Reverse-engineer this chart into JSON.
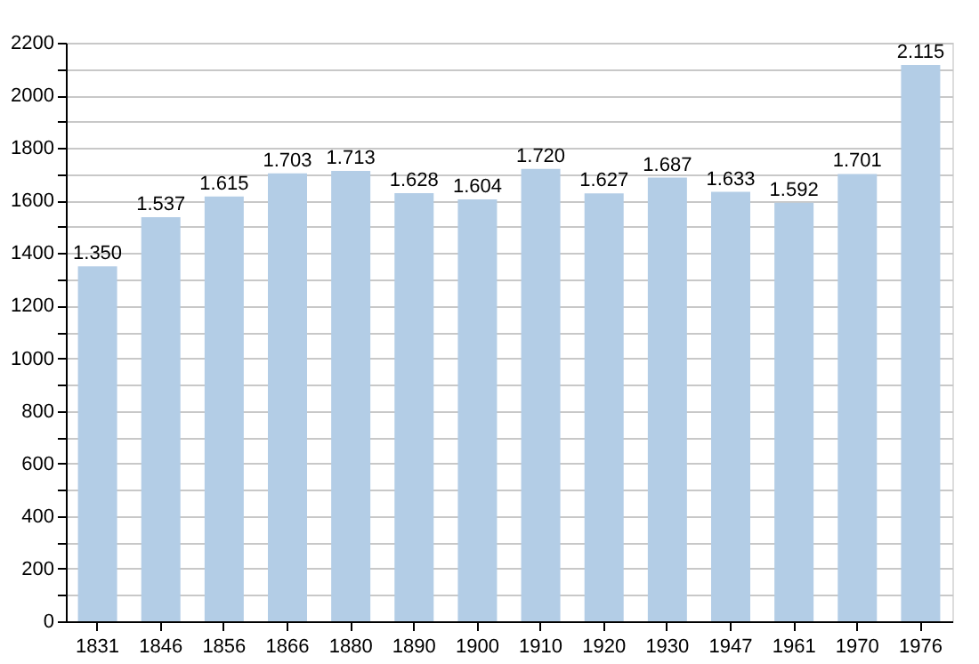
{
  "chart_data": {
    "type": "bar",
    "categories": [
      "1831",
      "1846",
      "1856",
      "1866",
      "1880",
      "1890",
      "1900",
      "1910",
      "1920",
      "1930",
      "1947",
      "1961",
      "1970",
      "1976"
    ],
    "values": [
      1350,
      1537,
      1615,
      1703,
      1713,
      1628,
      1604,
      1720,
      1627,
      1687,
      1633,
      1592,
      1701,
      2115
    ],
    "color": "#b3cde6",
    "value_labels": [
      "1.350",
      "1.537",
      "1.615",
      "1.703",
      "1.713",
      "1.628",
      "1.604",
      "1.720",
      "1.627",
      "1.687",
      "1.633",
      "1.592",
      "1.701",
      "2.115"
    ],
    "ylim": [
      0,
      2200
    ],
    "yticks": [
      0,
      {
        "value": 100,
        "label": null
      },
      200,
      {
        "value": 300,
        "label": null
      },
      400,
      {
        "value": 500,
        "label": null
      },
      600,
      {
        "value": 700,
        "label": null
      },
      800,
      {
        "value": 900,
        "label": null
      },
      1000,
      {
        "value": 1100,
        "label": null
      },
      1200,
      {
        "value": 1300,
        "label": null
      },
      1400,
      {
        "value": 1500,
        "label": null
      },
      1600,
      {
        "value": 1700,
        "label": null
      },
      1800,
      {
        "value": 1900,
        "label": null
      },
      2000,
      {
        "value": 2100,
        "label": null
      },
      2200
    ],
    "grid": "y"
  }
}
